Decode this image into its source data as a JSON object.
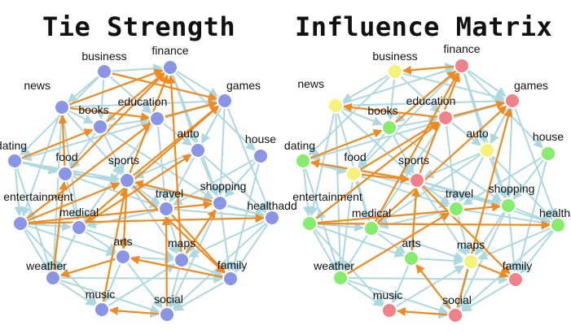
{
  "titles": {
    "left": "Tie Strength",
    "right": "Influence Matrix"
  },
  "colors": {
    "blue_node": "#8a95e6",
    "red_node": "#f0808a",
    "yellow_node": "#f5f27a",
    "green_node": "#86ec6e",
    "edge_light": "#add8e0",
    "edge_strong": "#f08a1e"
  },
  "panels": [
    {
      "id": "tie-strength",
      "nodes": [
        {
          "id": "business",
          "label": "business",
          "color": "blue"
        },
        {
          "id": "finance",
          "label": "finance",
          "color": "blue"
        },
        {
          "id": "news",
          "label": "news",
          "color": "blue"
        },
        {
          "id": "games",
          "label": "games",
          "color": "blue"
        },
        {
          "id": "books",
          "label": "books",
          "color": "blue"
        },
        {
          "id": "education",
          "label": "education",
          "color": "blue"
        },
        {
          "id": "auto",
          "label": "auto",
          "color": "blue"
        },
        {
          "id": "house",
          "label": "house",
          "color": "blue"
        },
        {
          "id": "dating",
          "label": "dating",
          "color": "blue"
        },
        {
          "id": "food",
          "label": "food",
          "color": "blue"
        },
        {
          "id": "sports",
          "label": "sports",
          "color": "blue"
        },
        {
          "id": "shopping",
          "label": "shopping",
          "color": "blue"
        },
        {
          "id": "entertainment",
          "label": "entertainment",
          "color": "blue"
        },
        {
          "id": "travel",
          "label": "travel",
          "color": "blue"
        },
        {
          "id": "healthadd",
          "label": "healthadd",
          "color": "blue"
        },
        {
          "id": "medical",
          "label": "medical",
          "color": "blue"
        },
        {
          "id": "arts",
          "label": "arts",
          "color": "blue"
        },
        {
          "id": "maps",
          "label": "maps",
          "color": "blue"
        },
        {
          "id": "weather",
          "label": "weather",
          "color": "blue"
        },
        {
          "id": "family",
          "label": "family",
          "color": "blue"
        },
        {
          "id": "music",
          "label": "music",
          "color": "blue"
        },
        {
          "id": "social",
          "label": "social",
          "color": "blue"
        }
      ]
    },
    {
      "id": "influence-matrix",
      "nodes": [
        {
          "id": "business",
          "label": "business",
          "color": "yellow"
        },
        {
          "id": "finance",
          "label": "finance",
          "color": "red"
        },
        {
          "id": "news",
          "label": "news",
          "color": "yellow"
        },
        {
          "id": "games",
          "label": "games",
          "color": "red"
        },
        {
          "id": "books",
          "label": "books",
          "color": "green"
        },
        {
          "id": "education",
          "label": "education",
          "color": "red"
        },
        {
          "id": "auto",
          "label": "auto",
          "color": "yellow"
        },
        {
          "id": "house",
          "label": "house",
          "color": "green"
        },
        {
          "id": "dating",
          "label": "dating",
          "color": "green"
        },
        {
          "id": "food",
          "label": "food",
          "color": "yellow"
        },
        {
          "id": "sports",
          "label": "sports",
          "color": "red"
        },
        {
          "id": "shopping",
          "label": "shopping",
          "color": "green"
        },
        {
          "id": "entertainment",
          "label": "entertainment",
          "color": "green"
        },
        {
          "id": "travel",
          "label": "travel",
          "color": "green"
        },
        {
          "id": "healthadd",
          "label": "healtha",
          "color": "green"
        },
        {
          "id": "medical",
          "label": "medical",
          "color": "green"
        },
        {
          "id": "arts",
          "label": "arts",
          "color": "green"
        },
        {
          "id": "maps",
          "label": "maps",
          "color": "yellow"
        },
        {
          "id": "weather",
          "label": "weather",
          "color": "green"
        },
        {
          "id": "family",
          "label": "family",
          "color": "red"
        },
        {
          "id": "music",
          "label": "music",
          "color": "red"
        },
        {
          "id": "social",
          "label": "social",
          "color": "red"
        }
      ]
    }
  ]
}
